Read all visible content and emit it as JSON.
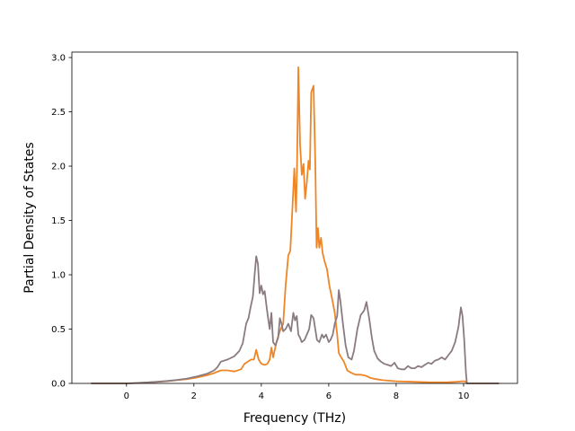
{
  "chart_data": {
    "type": "line",
    "title": "",
    "xlabel": "Frequency (THz)",
    "ylabel": "Partial Density of States",
    "xlim": [
      -1.62,
      11.6
    ],
    "ylim": [
      0,
      3.05
    ],
    "xticks": [
      0,
      2,
      4,
      6,
      8,
      10
    ],
    "yticks": [
      0.0,
      0.5,
      1.0,
      1.5,
      2.0,
      2.5,
      3.0
    ],
    "grid": false,
    "legend": "none",
    "series": [
      {
        "color": "#ee8526",
        "points": [
          [
            -1.05,
            0
          ],
          [
            0,
            0
          ],
          [
            0.3,
            0.003
          ],
          [
            0.6,
            0.008
          ],
          [
            0.9,
            0.013
          ],
          [
            1.2,
            0.02
          ],
          [
            1.5,
            0.03
          ],
          [
            1.8,
            0.04
          ],
          [
            2.1,
            0.055
          ],
          [
            2.4,
            0.075
          ],
          [
            2.6,
            0.095
          ],
          [
            2.8,
            0.12
          ],
          [
            3.0,
            0.12
          ],
          [
            3.2,
            0.11
          ],
          [
            3.4,
            0.13
          ],
          [
            3.5,
            0.18
          ],
          [
            3.6,
            0.2
          ],
          [
            3.7,
            0.22
          ],
          [
            3.78,
            0.22
          ],
          [
            3.85,
            0.31
          ],
          [
            3.92,
            0.22
          ],
          [
            4.0,
            0.18
          ],
          [
            4.1,
            0.17
          ],
          [
            4.18,
            0.18
          ],
          [
            4.25,
            0.22
          ],
          [
            4.3,
            0.33
          ],
          [
            4.35,
            0.24
          ],
          [
            4.45,
            0.38
          ],
          [
            4.55,
            0.48
          ],
          [
            4.65,
            0.55
          ],
          [
            4.72,
            0.9
          ],
          [
            4.8,
            1.18
          ],
          [
            4.86,
            1.22
          ],
          [
            4.92,
            1.6
          ],
          [
            4.98,
            1.98
          ],
          [
            5.03,
            1.58
          ],
          [
            5.06,
            2.0
          ],
          [
            5.1,
            2.91
          ],
          [
            5.15,
            2.2
          ],
          [
            5.2,
            1.92
          ],
          [
            5.25,
            2.02
          ],
          [
            5.3,
            1.7
          ],
          [
            5.35,
            1.85
          ],
          [
            5.4,
            2.05
          ],
          [
            5.44,
            1.97
          ],
          [
            5.48,
            2.68
          ],
          [
            5.55,
            2.74
          ],
          [
            5.6,
            2.05
          ],
          [
            5.64,
            1.25
          ],
          [
            5.68,
            1.43
          ],
          [
            5.72,
            1.25
          ],
          [
            5.77,
            1.34
          ],
          [
            5.82,
            1.2
          ],
          [
            5.88,
            1.12
          ],
          [
            5.95,
            1.05
          ],
          [
            6.02,
            0.9
          ],
          [
            6.1,
            0.78
          ],
          [
            6.18,
            0.65
          ],
          [
            6.25,
            0.45
          ],
          [
            6.3,
            0.28
          ],
          [
            6.35,
            0.25
          ],
          [
            6.45,
            0.2
          ],
          [
            6.55,
            0.12
          ],
          [
            6.65,
            0.1
          ],
          [
            6.8,
            0.08
          ],
          [
            6.95,
            0.08
          ],
          [
            7.1,
            0.07
          ],
          [
            7.25,
            0.05
          ],
          [
            7.4,
            0.04
          ],
          [
            7.6,
            0.03
          ],
          [
            8.0,
            0.02
          ],
          [
            8.5,
            0.015
          ],
          [
            9.0,
            0.01
          ],
          [
            9.5,
            0.01
          ],
          [
            9.8,
            0.015
          ],
          [
            9.95,
            0.02
          ],
          [
            10.05,
            0.02
          ],
          [
            10.1,
            0
          ],
          [
            11.05,
            0
          ]
        ]
      },
      {
        "color": "#8a7b80",
        "points": [
          [
            -1.05,
            0
          ],
          [
            0,
            0
          ],
          [
            0.3,
            0.004
          ],
          [
            0.6,
            0.009
          ],
          [
            0.9,
            0.015
          ],
          [
            1.2,
            0.022
          ],
          [
            1.5,
            0.032
          ],
          [
            1.8,
            0.045
          ],
          [
            2.1,
            0.065
          ],
          [
            2.4,
            0.09
          ],
          [
            2.6,
            0.12
          ],
          [
            2.7,
            0.15
          ],
          [
            2.8,
            0.2
          ],
          [
            3.0,
            0.22
          ],
          [
            3.2,
            0.25
          ],
          [
            3.35,
            0.3
          ],
          [
            3.45,
            0.37
          ],
          [
            3.55,
            0.55
          ],
          [
            3.62,
            0.6
          ],
          [
            3.68,
            0.7
          ],
          [
            3.75,
            0.8
          ],
          [
            3.8,
            1.0
          ],
          [
            3.85,
            1.17
          ],
          [
            3.9,
            1.1
          ],
          [
            3.95,
            0.83
          ],
          [
            4.0,
            0.9
          ],
          [
            4.05,
            0.82
          ],
          [
            4.1,
            0.85
          ],
          [
            4.15,
            0.72
          ],
          [
            4.2,
            0.6
          ],
          [
            4.25,
            0.5
          ],
          [
            4.3,
            0.65
          ],
          [
            4.35,
            0.38
          ],
          [
            4.42,
            0.35
          ],
          [
            4.5,
            0.42
          ],
          [
            4.55,
            0.6
          ],
          [
            4.6,
            0.55
          ],
          [
            4.65,
            0.48
          ],
          [
            4.72,
            0.5
          ],
          [
            4.8,
            0.55
          ],
          [
            4.88,
            0.48
          ],
          [
            4.95,
            0.65
          ],
          [
            5.0,
            0.58
          ],
          [
            5.05,
            0.62
          ],
          [
            5.1,
            0.45
          ],
          [
            5.15,
            0.42
          ],
          [
            5.2,
            0.38
          ],
          [
            5.28,
            0.4
          ],
          [
            5.35,
            0.45
          ],
          [
            5.42,
            0.5
          ],
          [
            5.48,
            0.63
          ],
          [
            5.55,
            0.6
          ],
          [
            5.6,
            0.5
          ],
          [
            5.65,
            0.4
          ],
          [
            5.72,
            0.38
          ],
          [
            5.8,
            0.45
          ],
          [
            5.85,
            0.42
          ],
          [
            5.92,
            0.45
          ],
          [
            6.0,
            0.38
          ],
          [
            6.05,
            0.4
          ],
          [
            6.12,
            0.45
          ],
          [
            6.18,
            0.55
          ],
          [
            6.25,
            0.62
          ],
          [
            6.3,
            0.86
          ],
          [
            6.35,
            0.75
          ],
          [
            6.42,
            0.55
          ],
          [
            6.5,
            0.35
          ],
          [
            6.58,
            0.24
          ],
          [
            6.68,
            0.22
          ],
          [
            6.75,
            0.3
          ],
          [
            6.85,
            0.5
          ],
          [
            6.95,
            0.63
          ],
          [
            7.05,
            0.67
          ],
          [
            7.12,
            0.75
          ],
          [
            7.2,
            0.6
          ],
          [
            7.28,
            0.42
          ],
          [
            7.35,
            0.3
          ],
          [
            7.45,
            0.23
          ],
          [
            7.55,
            0.2
          ],
          [
            7.65,
            0.18
          ],
          [
            7.75,
            0.17
          ],
          [
            7.85,
            0.16
          ],
          [
            7.95,
            0.19
          ],
          [
            8.05,
            0.14
          ],
          [
            8.15,
            0.13
          ],
          [
            8.25,
            0.13
          ],
          [
            8.35,
            0.16
          ],
          [
            8.45,
            0.14
          ],
          [
            8.55,
            0.14
          ],
          [
            8.65,
            0.16
          ],
          [
            8.75,
            0.15
          ],
          [
            8.85,
            0.17
          ],
          [
            8.95,
            0.19
          ],
          [
            9.05,
            0.18
          ],
          [
            9.15,
            0.21
          ],
          [
            9.25,
            0.22
          ],
          [
            9.35,
            0.24
          ],
          [
            9.45,
            0.22
          ],
          [
            9.55,
            0.26
          ],
          [
            9.65,
            0.3
          ],
          [
            9.75,
            0.38
          ],
          [
            9.85,
            0.52
          ],
          [
            9.92,
            0.7
          ],
          [
            9.97,
            0.62
          ],
          [
            10.02,
            0.4
          ],
          [
            10.07,
            0.1
          ],
          [
            10.1,
            0
          ],
          [
            11.05,
            0
          ]
        ]
      }
    ]
  }
}
